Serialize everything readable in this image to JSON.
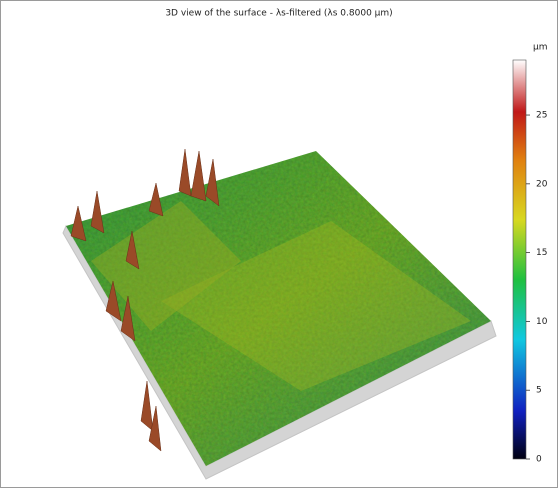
{
  "title": "3D view of the surface - λs-filtered (λs 0.8000 µm)",
  "colorbar": {
    "unit": "µm",
    "lim": [
      0,
      29
    ],
    "ticks": [
      0,
      5,
      10,
      15,
      20,
      25
    ]
  }
}
